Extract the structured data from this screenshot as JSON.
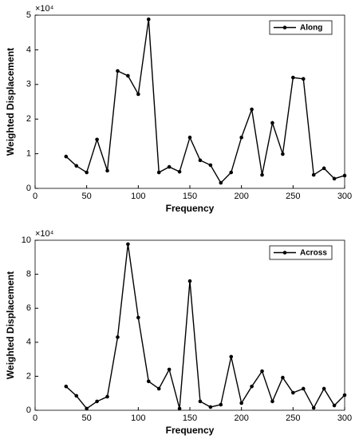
{
  "chart_data": [
    {
      "type": "line",
      "xlabel": "Frequency",
      "ylabel": "Weighted Displacement",
      "y_multiplier": "×10⁴",
      "x": [
        30,
        40,
        50,
        60,
        70,
        80,
        90,
        100,
        110,
        120,
        130,
        140,
        150,
        160,
        170,
        180,
        190,
        200,
        210,
        220,
        230,
        240,
        250,
        260,
        270,
        280,
        290,
        300
      ],
      "series": [
        {
          "name": "Along",
          "color": "#000000",
          "values": [
            0.92,
            0.65,
            0.46,
            1.41,
            0.51,
            3.39,
            3.25,
            2.72,
            4.88,
            0.46,
            0.62,
            0.48,
            1.47,
            0.81,
            0.67,
            0.16,
            0.46,
            1.47,
            2.28,
            0.39,
            1.89,
            0.99,
            3.2,
            3.16,
            0.39,
            0.58,
            0.28,
            0.37
          ]
        }
      ],
      "xlim": [
        0,
        300
      ],
      "xticks": [
        0,
        50,
        100,
        150,
        200,
        250,
        300
      ],
      "ylim": [
        0,
        5
      ],
      "yticks": [
        0,
        1,
        2,
        3,
        4,
        5
      ],
      "legend": "upper right"
    },
    {
      "type": "line",
      "xlabel": "Frequency",
      "ylabel": "Weighted Displacement",
      "y_multiplier": "×10⁴",
      "x": [
        30,
        40,
        50,
        60,
        70,
        80,
        90,
        100,
        110,
        120,
        130,
        140,
        150,
        160,
        170,
        180,
        190,
        200,
        210,
        220,
        230,
        240,
        250,
        260,
        270,
        280,
        290,
        300
      ],
      "series": [
        {
          "name": "Across",
          "color": "#000000",
          "values": [
            1.4,
            0.85,
            0.1,
            0.52,
            0.8,
            4.3,
            9.77,
            5.45,
            1.7,
            1.27,
            2.4,
            0.1,
            7.6,
            0.52,
            0.19,
            0.33,
            3.15,
            0.42,
            1.4,
            2.3,
            0.52,
            1.92,
            1.03,
            1.27,
            0.14,
            1.27,
            0.28,
            0.89
          ]
        }
      ],
      "xlim": [
        0,
        300
      ],
      "xticks": [
        0,
        50,
        100,
        150,
        200,
        250,
        300
      ],
      "ylim": [
        0,
        10
      ],
      "yticks": [
        0,
        2,
        4,
        6,
        8,
        10
      ],
      "legend": "upper right"
    }
  ]
}
